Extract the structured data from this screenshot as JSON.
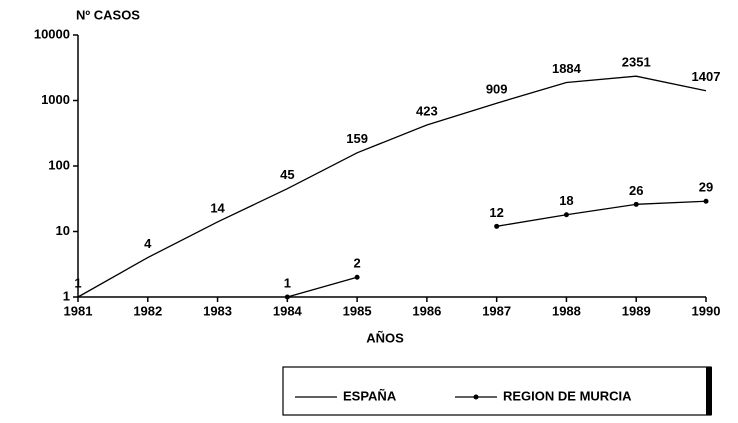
{
  "chart_data": {
    "type": "line",
    "y_label": "Nº CASOS",
    "x_label": "AÑOS",
    "x": [
      1981,
      1982,
      1983,
      1984,
      1985,
      1986,
      1987,
      1988,
      1989,
      1990
    ],
    "series": [
      {
        "name": "ESPAÑA",
        "color": "#000000",
        "values": [
          1,
          4,
          14,
          45,
          159,
          423,
          909,
          1884,
          2351,
          1407
        ]
      },
      {
        "name": "REGION DE MURCIA",
        "color": "#000000",
        "marker": true,
        "values": [
          null,
          null,
          null,
          1,
          2,
          null,
          12,
          18,
          26,
          29
        ]
      }
    ],
    "xlim": [
      1981,
      1990
    ],
    "xticks": [
      1981,
      1982,
      1983,
      1984,
      1985,
      1986,
      1987,
      1988,
      1989,
      1990
    ],
    "ylim": [
      1,
      10000
    ],
    "yticks": [
      1,
      10,
      100,
      1000,
      10000
    ],
    "log_y": true,
    "grid": false,
    "legend": "bottom-right"
  }
}
